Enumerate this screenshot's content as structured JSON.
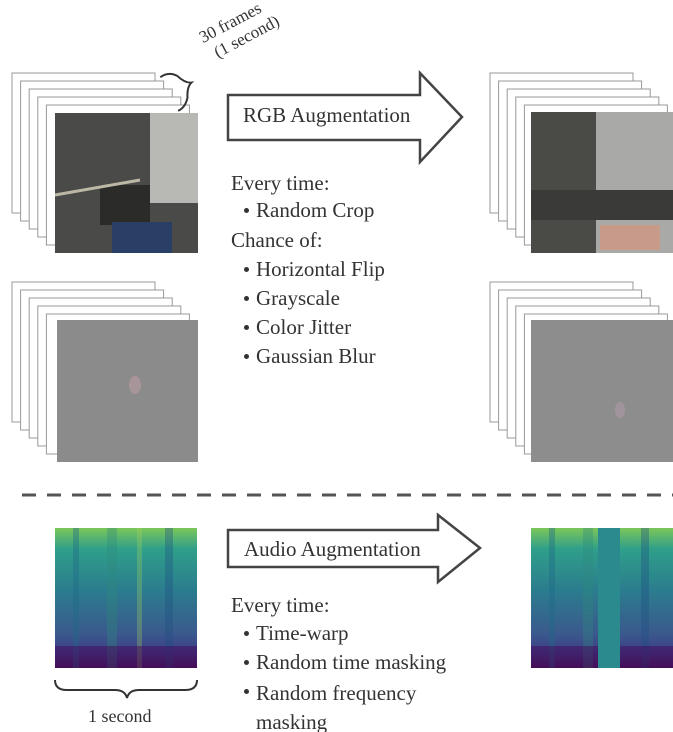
{
  "frames_label": {
    "count": "30 frames",
    "duration": "(1 second)"
  },
  "rgb": {
    "title": "RGB Augmentation",
    "always_heading": "Every time:",
    "always": [
      "Random Crop"
    ],
    "chance_heading": "Chance of:",
    "chance": [
      "Horizontal Flip",
      "Grayscale",
      "Color Jitter",
      "Gaussian Blur"
    ]
  },
  "audio": {
    "title": "Audio Augmentation",
    "always_heading": "Every time:",
    "always": [
      "Time-warp",
      "Random time masking",
      "Random frequency masking"
    ]
  },
  "spectrogram_label": "1 second"
}
